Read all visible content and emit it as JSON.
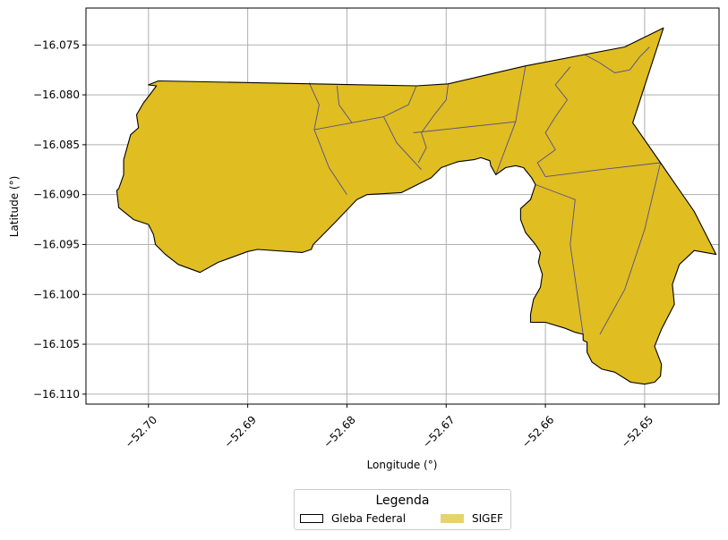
{
  "map": {
    "xlabel": "Longitude (°)",
    "ylabel": "Latitude (°)",
    "xlim": [
      -52.7063,
      -52.6425
    ],
    "ylim": [
      -16.111,
      -16.0713
    ],
    "xticks": [
      -52.7,
      -52.69,
      -52.68,
      -52.67,
      -52.66,
      -52.65
    ],
    "xtick_labels": [
      "−52.70",
      "−52.69",
      "−52.68",
      "−52.67",
      "−52.66",
      "−52.65"
    ],
    "yticks": [
      -16.075,
      -16.08,
      -16.085,
      -16.09,
      -16.095,
      -16.1,
      -16.105,
      -16.11
    ],
    "ytick_labels": [
      "−16.075",
      "−16.080",
      "−16.085",
      "−16.090",
      "−16.095",
      "−16.100",
      "−16.105",
      "−16.110"
    ],
    "grid": true,
    "colors": {
      "sigef_fill": "#e0bd21",
      "parcel_line": "#55508a",
      "boundary": "#000000",
      "grid": "#b0b0b0"
    }
  },
  "legend": {
    "title": "Legenda",
    "placement": "bottom-center",
    "entries": [
      {
        "label": "Gleba Federal",
        "style": "outline"
      },
      {
        "label": "SIGEF",
        "style": "fill"
      }
    ]
  },
  "chart_data": {
    "type": "map",
    "layers": [
      {
        "name": "Gleba Federal",
        "role": "boundary",
        "coordinates": [
          [
            -52.699,
            -16.0786
          ],
          [
            -52.673,
            -16.0791
          ],
          [
            -52.6698,
            -16.0789
          ],
          [
            -52.662,
            -16.0771
          ],
          [
            -52.652,
            -16.0752
          ],
          [
            -52.6481,
            -16.0733
          ],
          [
            -52.6512,
            -16.0828
          ],
          [
            -52.6484,
            -16.0868
          ],
          [
            -52.645,
            -16.0917
          ],
          [
            -52.6428,
            -16.096
          ],
          [
            -52.645,
            -16.0956
          ],
          [
            -52.6465,
            -16.097
          ],
          [
            -52.6472,
            -16.099
          ],
          [
            -52.647,
            -16.101
          ],
          [
            -52.6483,
            -16.1035
          ],
          [
            -52.649,
            -16.1052
          ],
          [
            -52.6483,
            -16.107
          ],
          [
            -52.6484,
            -16.1082
          ],
          [
            -52.649,
            -16.1088
          ],
          [
            -52.65,
            -16.109
          ],
          [
            -52.6514,
            -16.1088
          ],
          [
            -52.653,
            -16.1078
          ],
          [
            -52.6543,
            -16.1075
          ],
          [
            -52.6553,
            -16.1068
          ],
          [
            -52.6558,
            -16.1058
          ],
          [
            -52.6558,
            -16.1048
          ],
          [
            -52.6562,
            -16.1046
          ],
          [
            -52.6562,
            -16.104
          ],
          [
            -52.657,
            -16.1038
          ],
          [
            -52.658,
            -16.1034
          ],
          [
            -52.66,
            -16.1028
          ],
          [
            -52.6615,
            -16.1028
          ],
          [
            -52.6615,
            -16.102
          ],
          [
            -52.6612,
            -16.1005
          ],
          [
            -52.6605,
            -16.0993
          ],
          [
            -52.6603,
            -16.098
          ],
          [
            -52.6607,
            -16.0968
          ],
          [
            -52.6605,
            -16.0958
          ],
          [
            -52.661,
            -16.095
          ],
          [
            -52.662,
            -16.0938
          ],
          [
            -52.6625,
            -16.0925
          ],
          [
            -52.6625,
            -16.0914
          ],
          [
            -52.6615,
            -16.0905
          ],
          [
            -52.661,
            -16.089
          ],
          [
            -52.6614,
            -16.0883
          ],
          [
            -52.6618,
            -16.0878
          ],
          [
            -52.6622,
            -16.0873
          ],
          [
            -52.663,
            -16.0871
          ],
          [
            -52.664,
            -16.0873
          ],
          [
            -52.665,
            -16.088
          ],
          [
            -52.6655,
            -16.0871
          ],
          [
            -52.6656,
            -16.0866
          ],
          [
            -52.6665,
            -16.0863
          ],
          [
            -52.6672,
            -16.0865
          ],
          [
            -52.6688,
            -16.0867
          ],
          [
            -52.6705,
            -16.0873
          ],
          [
            -52.6715,
            -16.0883
          ],
          [
            -52.6745,
            -16.0898
          ],
          [
            -52.678,
            -16.09
          ],
          [
            -52.679,
            -16.0905
          ],
          [
            -52.6812,
            -16.0928
          ],
          [
            -52.6834,
            -16.095
          ],
          [
            -52.6836,
            -16.0955
          ],
          [
            -52.6845,
            -16.0958
          ],
          [
            -52.689,
            -16.0955
          ],
          [
            -52.69,
            -16.0957
          ],
          [
            -52.693,
            -16.0968
          ],
          [
            -52.6948,
            -16.0978
          ],
          [
            -52.697,
            -16.097
          ],
          [
            -52.6983,
            -16.096
          ],
          [
            -52.6993,
            -16.095
          ],
          [
            -52.6995,
            -16.094
          ],
          [
            -52.7,
            -16.093
          ],
          [
            -52.7015,
            -16.0925
          ],
          [
            -52.703,
            -16.0913
          ],
          [
            -52.7032,
            -16.0896
          ],
          [
            -52.703,
            -16.0894
          ],
          [
            -52.7025,
            -16.088
          ],
          [
            -52.7025,
            -16.0865
          ],
          [
            -52.7018,
            -16.084
          ],
          [
            -52.701,
            -16.0833
          ],
          [
            -52.7012,
            -16.082
          ],
          [
            -52.7005,
            -16.0808
          ],
          [
            -52.6998,
            -16.0799
          ],
          [
            -52.6992,
            -16.0791
          ],
          [
            -52.7,
            -16.079
          ],
          [
            -52.699,
            -16.0786
          ]
        ]
      },
      {
        "name": "SIGEF",
        "role": "parcel-divisions",
        "lines": [
          [
            [
              -52.6838,
              -16.0788
            ],
            [
              -52.6828,
              -16.081
            ],
            [
              -52.6833,
              -16.0835
            ],
            [
              -52.6818,
              -16.0873
            ],
            [
              -52.68,
              -16.09
            ]
          ],
          [
            [
              -52.6833,
              -16.0835
            ],
            [
              -52.6795,
              -16.0828
            ],
            [
              -52.6763,
              -16.0822
            ],
            [
              -52.6738,
              -16.081
            ],
            [
              -52.673,
              -16.0791
            ]
          ],
          [
            [
              -52.681,
              -16.0791
            ],
            [
              -52.6808,
              -16.081
            ],
            [
              -52.6795,
              -16.0828
            ]
          ],
          [
            [
              -52.6763,
              -16.0822
            ],
            [
              -52.675,
              -16.0848
            ],
            [
              -52.6725,
              -16.0875
            ]
          ],
          [
            [
              -52.6733,
              -16.0838
            ],
            [
              -52.663,
              -16.0827
            ]
          ],
          [
            [
              -52.662,
              -16.0771
            ],
            [
              -52.663,
              -16.0827
            ],
            [
              -52.665,
              -16.088
            ]
          ],
          [
            [
              -52.6698,
              -16.0789
            ],
            [
              -52.67,
              -16.0805
            ],
            [
              -52.6712,
              -16.082
            ],
            [
              -52.6725,
              -16.0838
            ],
            [
              -52.672,
              -16.0853
            ],
            [
              -52.6728,
              -16.0868
            ]
          ],
          [
            [
              -52.6575,
              -16.0772
            ],
            [
              -52.659,
              -16.079
            ],
            [
              -52.6578,
              -16.0805
            ],
            [
              -52.659,
              -16.0822
            ],
            [
              -52.66,
              -16.0838
            ],
            [
              -52.659,
              -16.0855
            ],
            [
              -52.6608,
              -16.0868
            ],
            [
              -52.66,
              -16.0882
            ]
          ],
          [
            [
              -52.66,
              -16.0882
            ],
            [
              -52.6545,
              -16.0875
            ],
            [
              -52.6484,
              -16.0868
            ]
          ],
          [
            [
              -52.6484,
              -16.0868
            ],
            [
              -52.65,
              -16.0935
            ],
            [
              -52.652,
              -16.0995
            ],
            [
              -52.6545,
              -16.104
            ]
          ],
          [
            [
              -52.661,
              -16.089
            ],
            [
              -52.657,
              -16.0905
            ],
            [
              -52.6575,
              -16.095
            ],
            [
              -52.6562,
              -16.104
            ]
          ],
          [
            [
              -52.656,
              -16.076
            ],
            [
              -52.6545,
              -16.0768
            ],
            [
              -52.653,
              -16.0778
            ],
            [
              -52.6515,
              -16.0775
            ],
            [
              -52.6505,
              -16.0762
            ],
            [
              -52.6495,
              -16.0752
            ]
          ]
        ]
      }
    ]
  }
}
